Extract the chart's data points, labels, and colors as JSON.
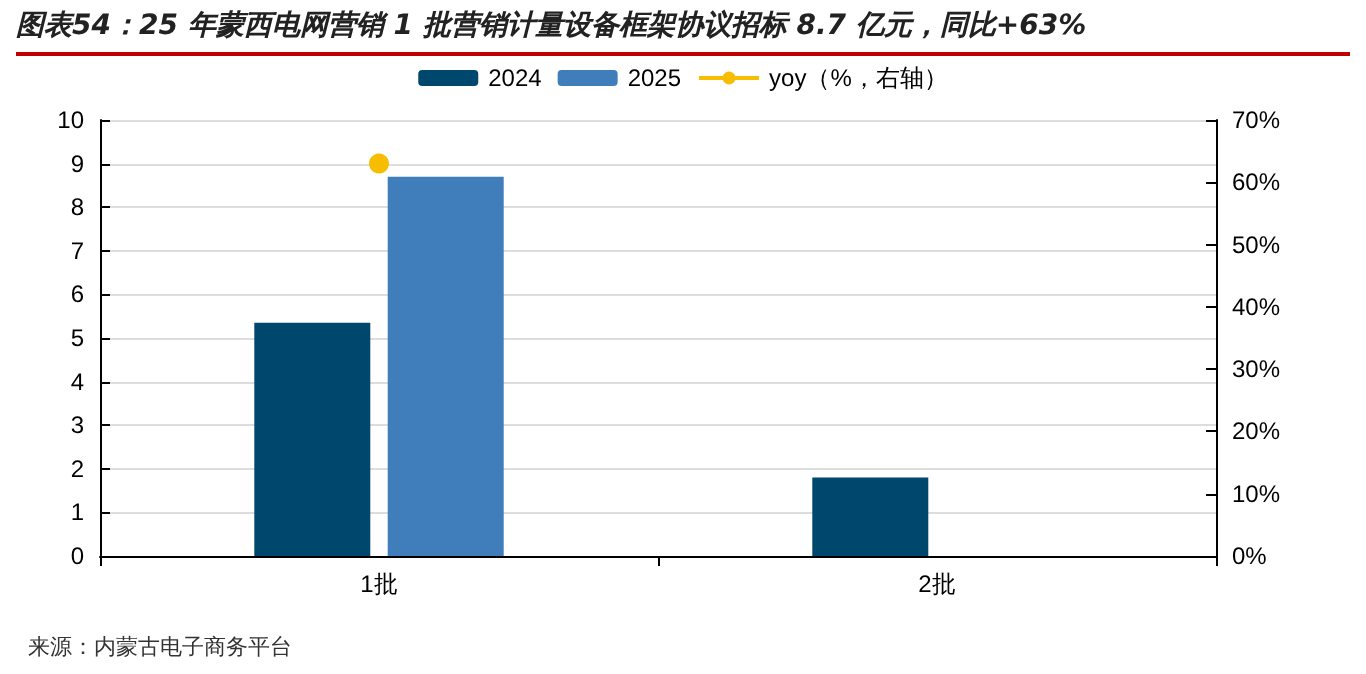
{
  "chart_data": {
    "type": "bar",
    "title": "图表54：25 年蒙西电网营销 1 批营销计量设备框架协议招标 8.7 亿元，同比+63%",
    "categories": [
      "1批",
      "2批"
    ],
    "series": [
      {
        "name": "2024",
        "color": "#00476e",
        "values": [
          5.35,
          1.8
        ]
      },
      {
        "name": "2025",
        "color": "#3f7dbb",
        "values": [
          8.7,
          null
        ]
      },
      {
        "name": "yoy（%，右轴）",
        "type": "line",
        "axis": "y2",
        "color": "#f7bd00",
        "marker": "circle",
        "values": [
          63,
          null
        ]
      }
    ],
    "ylim": [
      0,
      10
    ],
    "yticks": [
      0,
      1,
      2,
      3,
      4,
      5,
      6,
      7,
      8,
      9,
      10
    ],
    "y2lim": [
      0,
      70
    ],
    "y2ticks": [
      {
        "value": 0,
        "label": "0%"
      },
      {
        "value": 10,
        "label": "10%"
      },
      {
        "value": 20,
        "label": "20%"
      },
      {
        "value": 30,
        "label": "30%"
      },
      {
        "value": 40,
        "label": "40%"
      },
      {
        "value": 50,
        "label": "50%"
      },
      {
        "value": 60,
        "label": "60%"
      },
      {
        "value": 70,
        "label": "70%"
      }
    ],
    "grid": "y",
    "legend": "top",
    "annotations": [
      "来源：内蒙古电子商务平台"
    ]
  }
}
